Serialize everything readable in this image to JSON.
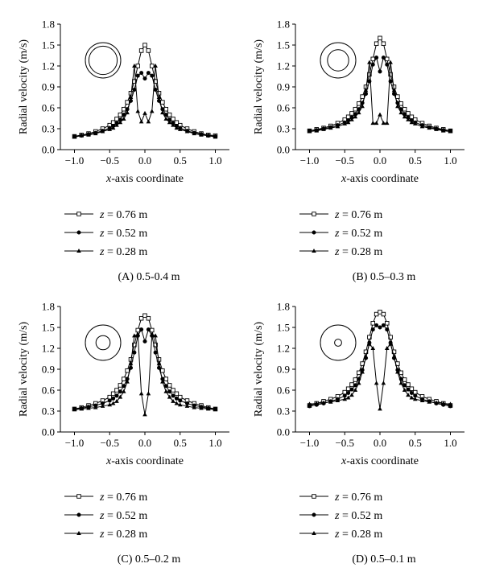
{
  "chart_data": [
    {
      "type": "line",
      "panel_label": "(A) 0.5-0.4 m",
      "ylabel": "Radial velocity (m/s)",
      "xlabel_italic": "x",
      "xlabel_rest": "-axis coordinate",
      "xlim": [
        -1.2,
        1.2
      ],
      "ylim": [
        0,
        1.8
      ],
      "xticks": [
        "−1.0",
        "−0.5",
        "0.0",
        "0.5",
        "1.0"
      ],
      "yticks": [
        "0.0",
        "0.3",
        "0.6",
        "0.9",
        "1.2",
        "1.5",
        "1.8"
      ],
      "grid": false,
      "legend_position": "below",
      "inset": "concentric-circles",
      "inset_inner_ratio": 0.8,
      "x": [
        -1.0,
        -0.9,
        -0.8,
        -0.7,
        -0.6,
        -0.5,
        -0.45,
        -0.4,
        -0.35,
        -0.3,
        -0.25,
        -0.2,
        -0.15,
        -0.1,
        -0.05,
        0.0,
        0.05,
        0.1,
        0.15,
        0.2,
        0.25,
        0.3,
        0.35,
        0.4,
        0.45,
        0.5,
        0.6,
        0.7,
        0.8,
        0.9,
        1.0
      ],
      "series": [
        {
          "var": "z",
          "eq": " = 0.76 m",
          "marker": "square",
          "values": [
            0.19,
            0.21,
            0.23,
            0.26,
            0.3,
            0.35,
            0.39,
            0.44,
            0.5,
            0.58,
            0.68,
            0.81,
            0.98,
            1.2,
            1.42,
            1.5,
            1.42,
            1.2,
            0.98,
            0.81,
            0.68,
            0.58,
            0.5,
            0.44,
            0.39,
            0.35,
            0.3,
            0.26,
            0.23,
            0.21,
            0.2
          ]
        },
        {
          "var": "z",
          "eq": " = 0.52 m",
          "marker": "circle",
          "values": [
            0.19,
            0.2,
            0.22,
            0.24,
            0.27,
            0.31,
            0.34,
            0.38,
            0.43,
            0.5,
            0.58,
            0.7,
            0.86,
            1.06,
            1.1,
            1.02,
            1.1,
            1.06,
            0.86,
            0.7,
            0.58,
            0.5,
            0.43,
            0.38,
            0.34,
            0.31,
            0.27,
            0.24,
            0.22,
            0.2,
            0.19
          ]
        },
        {
          "var": "z",
          "eq": " = 0.28 m",
          "marker": "triangle",
          "values": [
            0.18,
            0.2,
            0.21,
            0.23,
            0.26,
            0.29,
            0.31,
            0.35,
            0.39,
            0.44,
            0.53,
            0.75,
            1.2,
            0.55,
            0.4,
            0.52,
            0.4,
            0.55,
            1.2,
            0.75,
            0.53,
            0.44,
            0.39,
            0.35,
            0.31,
            0.29,
            0.26,
            0.23,
            0.21,
            0.2,
            0.18
          ]
        }
      ]
    },
    {
      "type": "line",
      "panel_label": "(B) 0.5–0.3 m",
      "ylabel": "Radial velocity (m/s)",
      "xlabel_italic": "x",
      "xlabel_rest": "-axis coordinate",
      "xlim": [
        -1.2,
        1.2
      ],
      "ylim": [
        0,
        1.8
      ],
      "xticks": [
        "−1.0",
        "−0.5",
        "0.0",
        "0.5",
        "1.0"
      ],
      "yticks": [
        "0.0",
        "0.3",
        "0.6",
        "0.9",
        "1.2",
        "1.5",
        "1.8"
      ],
      "grid": false,
      "legend_position": "below",
      "inset": "concentric-circles",
      "inset_inner_ratio": 0.6,
      "x": [
        -1.0,
        -0.9,
        -0.8,
        -0.7,
        -0.6,
        -0.5,
        -0.45,
        -0.4,
        -0.35,
        -0.3,
        -0.25,
        -0.2,
        -0.15,
        -0.1,
        -0.05,
        0.0,
        0.05,
        0.1,
        0.15,
        0.2,
        0.25,
        0.3,
        0.35,
        0.4,
        0.45,
        0.5,
        0.6,
        0.7,
        0.8,
        0.9,
        1.0
      ],
      "series": [
        {
          "var": "z",
          "eq": " = 0.76 m",
          "marker": "square",
          "values": [
            0.27,
            0.29,
            0.31,
            0.34,
            0.38,
            0.43,
            0.47,
            0.52,
            0.58,
            0.66,
            0.76,
            0.9,
            1.08,
            1.3,
            1.52,
            1.6,
            1.52,
            1.3,
            1.08,
            0.9,
            0.76,
            0.66,
            0.58,
            0.52,
            0.47,
            0.43,
            0.38,
            0.34,
            0.31,
            0.29,
            0.27
          ]
        },
        {
          "var": "z",
          "eq": " = 0.52 m",
          "marker": "circle",
          "values": [
            0.27,
            0.28,
            0.3,
            0.32,
            0.35,
            0.39,
            0.42,
            0.46,
            0.51,
            0.58,
            0.67,
            0.8,
            0.98,
            1.22,
            1.32,
            1.12,
            1.32,
            1.22,
            0.98,
            0.8,
            0.67,
            0.58,
            0.51,
            0.46,
            0.42,
            0.39,
            0.35,
            0.32,
            0.3,
            0.28,
            0.27
          ]
        },
        {
          "var": "z",
          "eq": " = 0.28 m",
          "marker": "triangle",
          "values": [
            0.26,
            0.27,
            0.29,
            0.31,
            0.33,
            0.37,
            0.39,
            0.43,
            0.47,
            0.53,
            0.62,
            0.85,
            1.25,
            0.38,
            0.38,
            0.5,
            0.38,
            0.38,
            1.25,
            0.85,
            0.62,
            0.53,
            0.47,
            0.43,
            0.39,
            0.37,
            0.33,
            0.31,
            0.29,
            0.27,
            0.26
          ]
        }
      ]
    },
    {
      "type": "line",
      "panel_label": "(C) 0.5–0.2 m",
      "ylabel": "Radial velocity (m/s)",
      "xlabel_italic": "x",
      "xlabel_rest": "-axis coordinate",
      "xlim": [
        -1.2,
        1.2
      ],
      "ylim": [
        0,
        1.8
      ],
      "xticks": [
        "−1.0",
        "−0.5",
        "0.0",
        "0.5",
        "1.0"
      ],
      "yticks": [
        "0.0",
        "0.3",
        "0.6",
        "0.9",
        "1.2",
        "1.5",
        "1.8"
      ],
      "grid": false,
      "legend_position": "below",
      "inset": "concentric-circles",
      "inset_inner_ratio": 0.4,
      "x": [
        -1.0,
        -0.9,
        -0.8,
        -0.7,
        -0.6,
        -0.5,
        -0.45,
        -0.4,
        -0.35,
        -0.3,
        -0.25,
        -0.2,
        -0.15,
        -0.1,
        -0.05,
        0.0,
        0.05,
        0.1,
        0.15,
        0.2,
        0.25,
        0.3,
        0.35,
        0.4,
        0.45,
        0.5,
        0.6,
        0.7,
        0.8,
        0.9,
        1.0
      ],
      "series": [
        {
          "var": "z",
          "eq": " = 0.76 m",
          "marker": "square",
          "values": [
            0.33,
            0.35,
            0.38,
            0.41,
            0.45,
            0.5,
            0.55,
            0.6,
            0.67,
            0.76,
            0.88,
            1.04,
            1.25,
            1.46,
            1.63,
            1.67,
            1.63,
            1.46,
            1.25,
            1.04,
            0.88,
            0.76,
            0.67,
            0.6,
            0.55,
            0.5,
            0.45,
            0.41,
            0.38,
            0.35,
            0.33
          ]
        },
        {
          "var": "z",
          "eq": " = 0.52 m",
          "marker": "circle",
          "values": [
            0.33,
            0.34,
            0.36,
            0.38,
            0.41,
            0.45,
            0.48,
            0.52,
            0.58,
            0.66,
            0.76,
            0.92,
            1.14,
            1.38,
            1.47,
            1.3,
            1.47,
            1.38,
            1.14,
            0.92,
            0.76,
            0.66,
            0.58,
            0.52,
            0.48,
            0.45,
            0.41,
            0.38,
            0.36,
            0.34,
            0.33
          ]
        },
        {
          "var": "z",
          "eq": " = 0.28 m",
          "marker": "triangle",
          "values": [
            0.32,
            0.33,
            0.34,
            0.35,
            0.37,
            0.39,
            0.41,
            0.44,
            0.5,
            0.58,
            0.72,
            0.98,
            1.38,
            1.4,
            0.55,
            0.25,
            0.55,
            1.4,
            1.38,
            0.98,
            0.72,
            0.58,
            0.5,
            0.44,
            0.41,
            0.39,
            0.37,
            0.35,
            0.34,
            0.33,
            0.32
          ]
        }
      ]
    },
    {
      "type": "line",
      "panel_label": "(D) 0.5–0.1 m",
      "ylabel": "Radial velocity (m/s)",
      "xlabel_italic": "x",
      "xlabel_rest": "-axis coordinate",
      "xlim": [
        -1.2,
        1.2
      ],
      "ylim": [
        0,
        1.8
      ],
      "xticks": [
        "−1.0",
        "−0.5",
        "0.0",
        "0.5",
        "1.0"
      ],
      "yticks": [
        "0.0",
        "0.3",
        "0.6",
        "0.9",
        "1.2",
        "1.5",
        "1.8"
      ],
      "grid": false,
      "legend_position": "below",
      "inset": "concentric-circles",
      "inset_inner_ratio": 0.2,
      "x": [
        -1.0,
        -0.9,
        -0.8,
        -0.7,
        -0.6,
        -0.5,
        -0.45,
        -0.4,
        -0.35,
        -0.3,
        -0.25,
        -0.2,
        -0.15,
        -0.1,
        -0.05,
        0.0,
        0.05,
        0.1,
        0.15,
        0.2,
        0.25,
        0.3,
        0.35,
        0.4,
        0.45,
        0.5,
        0.6,
        0.7,
        0.8,
        0.9,
        1.0
      ],
      "series": [
        {
          "var": "z",
          "eq": " = 0.76 m",
          "marker": "square",
          "values": [
            0.38,
            0.41,
            0.44,
            0.47,
            0.51,
            0.57,
            0.62,
            0.68,
            0.75,
            0.85,
            0.98,
            1.15,
            1.36,
            1.56,
            1.69,
            1.72,
            1.69,
            1.56,
            1.36,
            1.15,
            0.98,
            0.85,
            0.75,
            0.68,
            0.62,
            0.57,
            0.51,
            0.47,
            0.44,
            0.41,
            0.38
          ]
        },
        {
          "var": "z",
          "eq": " = 0.52 m",
          "marker": "circle",
          "values": [
            0.37,
            0.39,
            0.41,
            0.44,
            0.47,
            0.52,
            0.56,
            0.61,
            0.67,
            0.76,
            0.89,
            1.06,
            1.28,
            1.47,
            1.53,
            1.5,
            1.53,
            1.47,
            1.28,
            1.06,
            0.89,
            0.76,
            0.67,
            0.61,
            0.56,
            0.52,
            0.47,
            0.44,
            0.41,
            0.39,
            0.37
          ]
        },
        {
          "var": "z",
          "eq": " = 0.28 m",
          "marker": "triangle",
          "values": [
            0.4,
            0.41,
            0.42,
            0.43,
            0.45,
            0.47,
            0.49,
            0.53,
            0.6,
            0.7,
            0.86,
            1.08,
            1.26,
            1.2,
            0.7,
            0.33,
            0.7,
            1.2,
            1.26,
            1.08,
            0.86,
            0.7,
            0.6,
            0.53,
            0.49,
            0.47,
            0.45,
            0.43,
            0.42,
            0.41,
            0.4
          ]
        }
      ]
    }
  ]
}
